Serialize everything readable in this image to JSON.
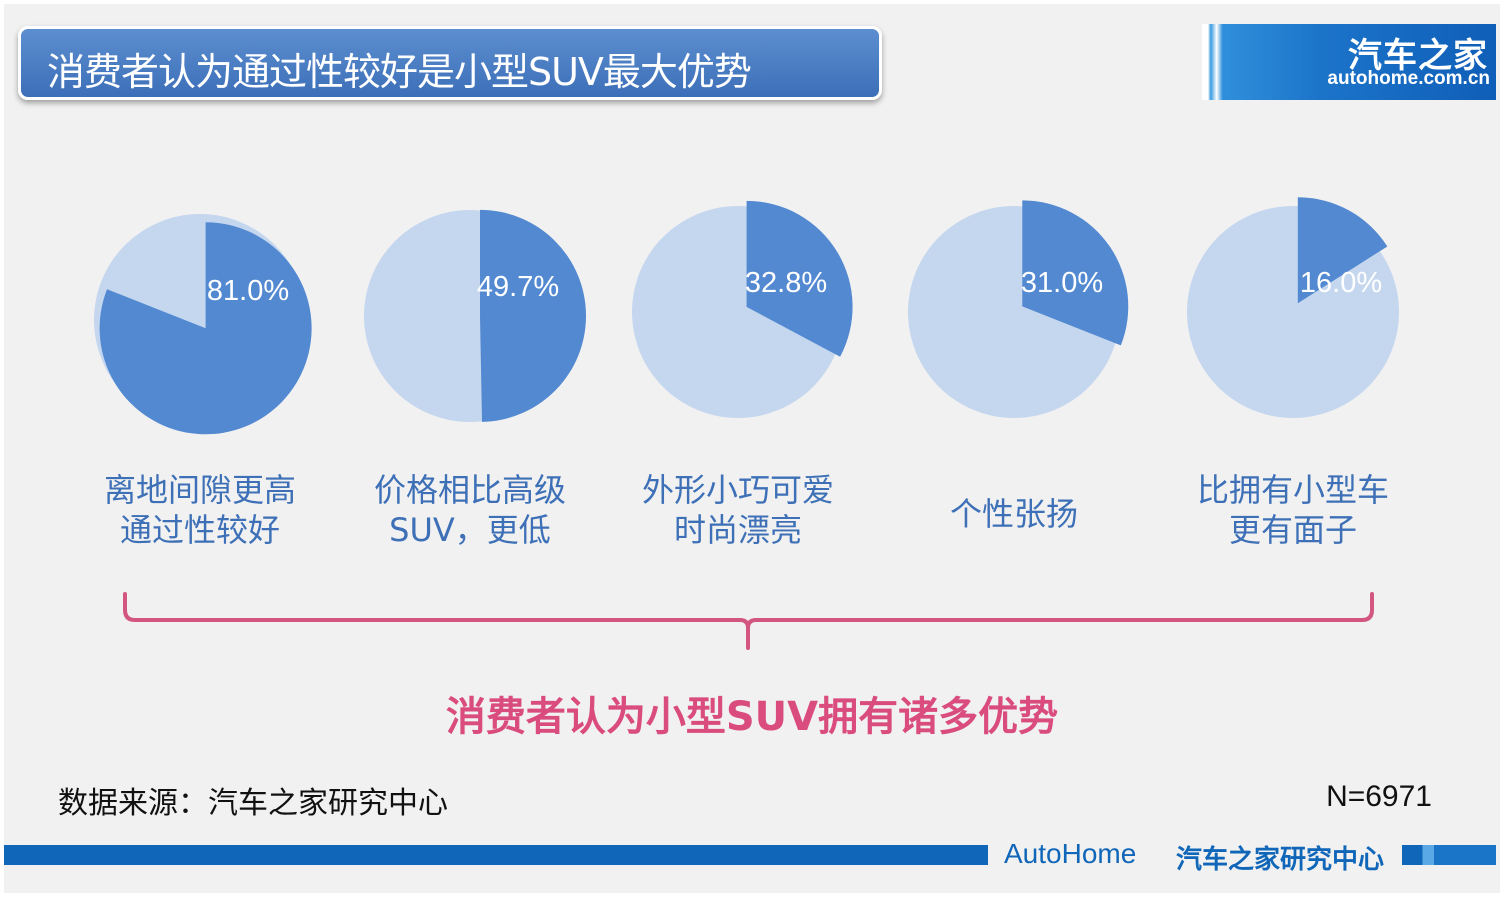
{
  "header": {
    "title": "消费者认为通过性较好是小型SUV最大优势"
  },
  "logo": {
    "chinese": "汽车之家",
    "url": "autohome.com.cn"
  },
  "chart_data": {
    "type": "pie",
    "title": "消费者认为通过性较好是小型SUV最大优势",
    "colors": {
      "highlight": "#5289d1",
      "remainder": "#c5d7ef"
    },
    "items": [
      {
        "value": 81.0,
        "value_label": "81.0%",
        "label_lines": [
          "离地间隙更高",
          "通过性较好"
        ]
      },
      {
        "value": 49.7,
        "value_label": "49.7%",
        "label_lines": [
          "价格相比高级",
          "SUV，更低"
        ]
      },
      {
        "value": 32.8,
        "value_label": "32.8%",
        "label_lines": [
          "外形小巧可爱",
          "时尚漂亮"
        ]
      },
      {
        "value": 31.0,
        "value_label": "31.0%",
        "label_lines": [
          "个性张扬"
        ]
      },
      {
        "value": 16.0,
        "value_label": "16.0%",
        "label_lines": [
          "比拥有小型车",
          "更有面子"
        ]
      }
    ]
  },
  "conclusion": "消费者认为小型SUV拥有诸多优势",
  "source": "数据来源：汽车之家研究中心",
  "sample_size": "N=6971",
  "footer": {
    "brand": "AutoHome",
    "org": "汽车之家研究中心"
  }
}
